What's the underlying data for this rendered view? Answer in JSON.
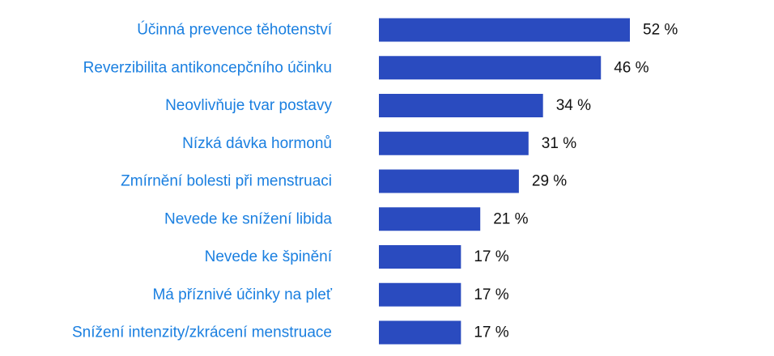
{
  "colors": {
    "bar": "#2a4bbf",
    "category_text": "#1a7fe0",
    "value_text": "#111111",
    "background": "#ffffff"
  },
  "chart_data": {
    "type": "bar",
    "orientation": "horizontal",
    "categories": [
      "Účinná prevence těhotenství",
      "Reverzibilita antikoncepčního účinku",
      "Neovlivňuje tvar postavy",
      "Nízká dávka hormonů",
      "Zmírnění bolesti při menstruaci",
      "Nevede ke snížení libida",
      "Nevede ke špinění",
      "Má příznivé účinky na pleť",
      "Snížení intenzity/zkrácení menstruace"
    ],
    "values": [
      52,
      46,
      34,
      31,
      29,
      21,
      17,
      17,
      17
    ],
    "value_labels": [
      "52 %",
      "46 %",
      "34 %",
      "31 %",
      "29 %",
      "21 %",
      "17 %",
      "17 %",
      "17 %"
    ],
    "unit": "%",
    "grid": false,
    "legend": "none"
  }
}
